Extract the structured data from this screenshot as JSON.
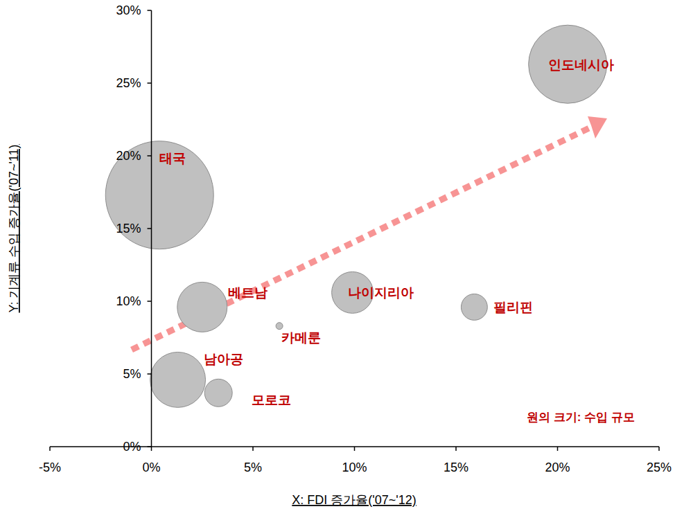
{
  "chart_data": {
    "type": "bubble",
    "x_label": "X: FDI 증가율('07~'12)",
    "y_label": "Y: 기계류 수입 증가율('07~'11)",
    "annotation": "원의 크기: 수입 규모",
    "color": "#c0c0c0",
    "grid": false,
    "xlim": [
      -5,
      25
    ],
    "ylim": [
      0,
      30
    ],
    "xticks": [
      {
        "value": -5,
        "label": "-5%"
      },
      {
        "value": 0,
        "label": "0%"
      },
      {
        "value": 5,
        "label": "5%"
      },
      {
        "value": 10,
        "label": "10%"
      },
      {
        "value": 15,
        "label": "15%"
      },
      {
        "value": 20,
        "label": "20%"
      },
      {
        "value": 25,
        "label": "25%"
      }
    ],
    "yticks": [
      {
        "value": 0,
        "label": "0%"
      },
      {
        "value": 5,
        "label": "5%"
      },
      {
        "value": 10,
        "label": "10%"
      },
      {
        "value": 15,
        "label": "15%"
      },
      {
        "value": 20,
        "label": "20%"
      },
      {
        "value": 25,
        "label": "25%"
      },
      {
        "value": 30,
        "label": "30%"
      }
    ],
    "points": [
      {
        "label": "인도네시아",
        "x": 20.5,
        "y": 26.3,
        "size": 32
      },
      {
        "label": "태국",
        "x": 0.4,
        "y": 17.3,
        "size": 61
      },
      {
        "label": "베트남",
        "x": 2.5,
        "y": 9.6,
        "size": 13
      },
      {
        "label": "나이지리아",
        "x": 9.9,
        "y": 10.6,
        "size": 9
      },
      {
        "label": "필리핀",
        "x": 15.9,
        "y": 9.6,
        "size": 3.6
      },
      {
        "label": "카메룬",
        "x": 6.3,
        "y": 8.3,
        "size": 0.25
      },
      {
        "label": "남아공",
        "x": 1.3,
        "y": 4.6,
        "size": 16
      },
      {
        "label": "모로코",
        "x": 3.3,
        "y": 3.7,
        "size": 4
      }
    ]
  }
}
